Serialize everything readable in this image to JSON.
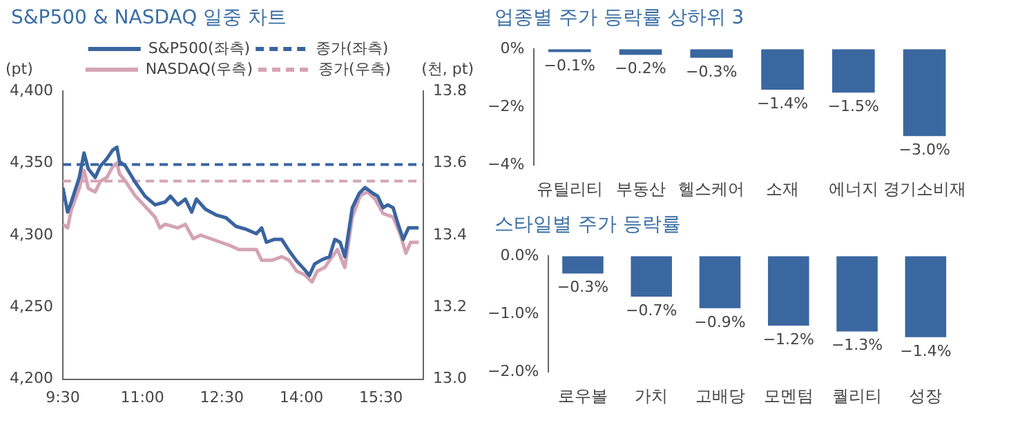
{
  "chart_data": [
    {
      "type": "line",
      "title": "S&P500 & NASDAQ 일중 차트",
      "ylabel": "(pt)",
      "y2label": "(천, pt)",
      "xlim": [
        9.5,
        16.3
      ],
      "xticks": [
        {
          "value": 9.5,
          "label": "9:30"
        },
        {
          "value": 11,
          "label": "11:00"
        },
        {
          "value": 12.5,
          "label": "12:30"
        },
        {
          "value": 14,
          "label": "14:00"
        },
        {
          "value": 15.5,
          "label": "15:30"
        }
      ],
      "ylim": [
        4200,
        4400
      ],
      "yticks": [
        {
          "value": 4200,
          "label": "4,200"
        },
        {
          "value": 4250,
          "label": "4,250"
        },
        {
          "value": 4300,
          "label": "4,300"
        },
        {
          "value": 4350,
          "label": "4,350"
        },
        {
          "value": 4400,
          "label": "4,400"
        }
      ],
      "y2lim": [
        13.0,
        13.8
      ],
      "y2ticks": [
        {
          "value": 13.0,
          "label": "13.0"
        },
        {
          "value": 13.2,
          "label": "13.2"
        },
        {
          "value": 13.4,
          "label": "13.4"
        },
        {
          "value": 13.6,
          "label": "13.6"
        },
        {
          "value": 13.8,
          "label": "13.8"
        }
      ],
      "series": [
        {
          "name": "S&P500(좌측)",
          "color": "#3a64a0",
          "x": [
            9.5,
            9.59,
            9.66,
            9.81,
            9.9,
            9.98,
            10.11,
            10.21,
            10.33,
            10.44,
            10.52,
            10.57,
            10.68,
            10.86,
            11.05,
            11.24,
            11.43,
            11.53,
            11.67,
            11.81,
            11.93,
            12.02,
            12.19,
            12.39,
            12.58,
            12.77,
            12.96,
            13.15,
            13.25,
            13.34,
            13.48,
            13.63,
            13.77,
            13.91,
            14.06,
            14.15,
            14.25,
            14.39,
            14.53,
            14.63,
            14.73,
            14.82,
            14.96,
            15.09,
            15.2,
            15.35,
            15.44,
            15.54,
            15.63,
            15.73,
            15.82,
            15.92,
            16.02,
            16.11,
            16.21
          ],
          "values": [
            4333,
            4316,
            4323,
            4340,
            4357,
            4346,
            4340,
            4348,
            4353,
            4359,
            4361,
            4351,
            4348,
            4337,
            4327,
            4321,
            4323,
            4327,
            4321,
            4325,
            4316,
            4325,
            4318,
            4314,
            4312,
            4306,
            4304,
            4301,
            4305,
            4295,
            4297,
            4297,
            4289,
            4282,
            4276,
            4272,
            4280,
            4283,
            4285,
            4297,
            4295,
            4285,
            4319,
            4329,
            4333,
            4329,
            4327,
            4319,
            4321,
            4319,
            4308,
            4297,
            4305,
            4305,
            4305
          ]
        },
        {
          "name": "NASDAQ(우측)",
          "color": "#d4a3b4",
          "axis": "y2",
          "x": [
            9.5,
            9.59,
            9.66,
            9.81,
            9.9,
            9.98,
            10.11,
            10.21,
            10.33,
            10.44,
            10.52,
            10.57,
            10.68,
            10.86,
            11.05,
            11.24,
            11.33,
            11.43,
            11.67,
            11.81,
            11.96,
            12.1,
            12.29,
            12.48,
            12.67,
            12.82,
            12.96,
            13.15,
            13.25,
            13.44,
            13.63,
            13.77,
            13.91,
            14.06,
            14.2,
            14.3,
            14.44,
            14.53,
            14.68,
            14.82,
            14.96,
            15.11,
            15.25,
            15.39,
            15.54,
            15.73,
            15.87,
            15.97,
            16.06,
            16.21
          ],
          "values": [
            13.43,
            13.42,
            13.47,
            13.53,
            13.58,
            13.53,
            13.52,
            13.55,
            13.56,
            13.59,
            13.6,
            13.57,
            13.55,
            13.51,
            13.48,
            13.45,
            13.42,
            13.43,
            13.42,
            13.43,
            13.39,
            13.4,
            13.39,
            13.38,
            13.37,
            13.36,
            13.36,
            13.36,
            13.33,
            13.33,
            13.34,
            13.33,
            13.3,
            13.29,
            13.27,
            13.3,
            13.31,
            13.33,
            13.36,
            13.31,
            13.45,
            13.51,
            13.52,
            13.5,
            13.46,
            13.45,
            13.4,
            13.35,
            13.38,
            13.38
          ]
        }
      ],
      "ref_lines": [
        {
          "axis": "y",
          "value": 4349,
          "label": "종가(좌측)",
          "color": "#3a64a0",
          "line_style": "dashed"
        },
        {
          "axis": "y2",
          "value": 13.55,
          "label": "종가(우측)",
          "color": "#d4a3b4",
          "line_style": "dashed"
        }
      ],
      "legend": "top",
      "marker": "none",
      "line_style": "solid",
      "grid": false
    },
    {
      "type": "bar",
      "title": "업종별 주가 등락률 상하위 3",
      "categories": [
        "유틸리티",
        "부동산",
        "헬스케어",
        "소재",
        "에너지",
        "경기소비재"
      ],
      "values": [
        -0.1,
        -0.2,
        -0.3,
        -1.4,
        -1.5,
        -3.0
      ],
      "value_labels": [
        "−0.1%",
        "−0.2%",
        "−0.3%",
        "−1.4%",
        "−1.5%",
        "−3.0%"
      ],
      "color": "#3b67a0",
      "ylim": [
        -4,
        0
      ],
      "yticks": [
        {
          "value": -4,
          "label": "−4%"
        },
        {
          "value": -2,
          "label": "−2%"
        },
        {
          "value": 0,
          "label": "0%"
        }
      ],
      "grid": false
    },
    {
      "type": "bar",
      "title": "스타일별 주가 등락률",
      "categories": [
        "로우볼",
        "가치",
        "고배당",
        "모멘텀",
        "퀄리티",
        "성장"
      ],
      "values": [
        -0.3,
        -0.7,
        -0.9,
        -1.2,
        -1.3,
        -1.4
      ],
      "value_labels": [
        "−0.3%",
        "−0.7%",
        "−0.9%",
        "−1.2%",
        "−1.3%",
        "−1.4%"
      ],
      "color": "#3b67a0",
      "ylim": [
        -2,
        0
      ],
      "yticks": [
        {
          "value": -2,
          "label": "−2.0%"
        },
        {
          "value": -1,
          "label": "−1.0%"
        },
        {
          "value": 0,
          "label": "0.0%"
        }
      ],
      "grid": false
    }
  ]
}
